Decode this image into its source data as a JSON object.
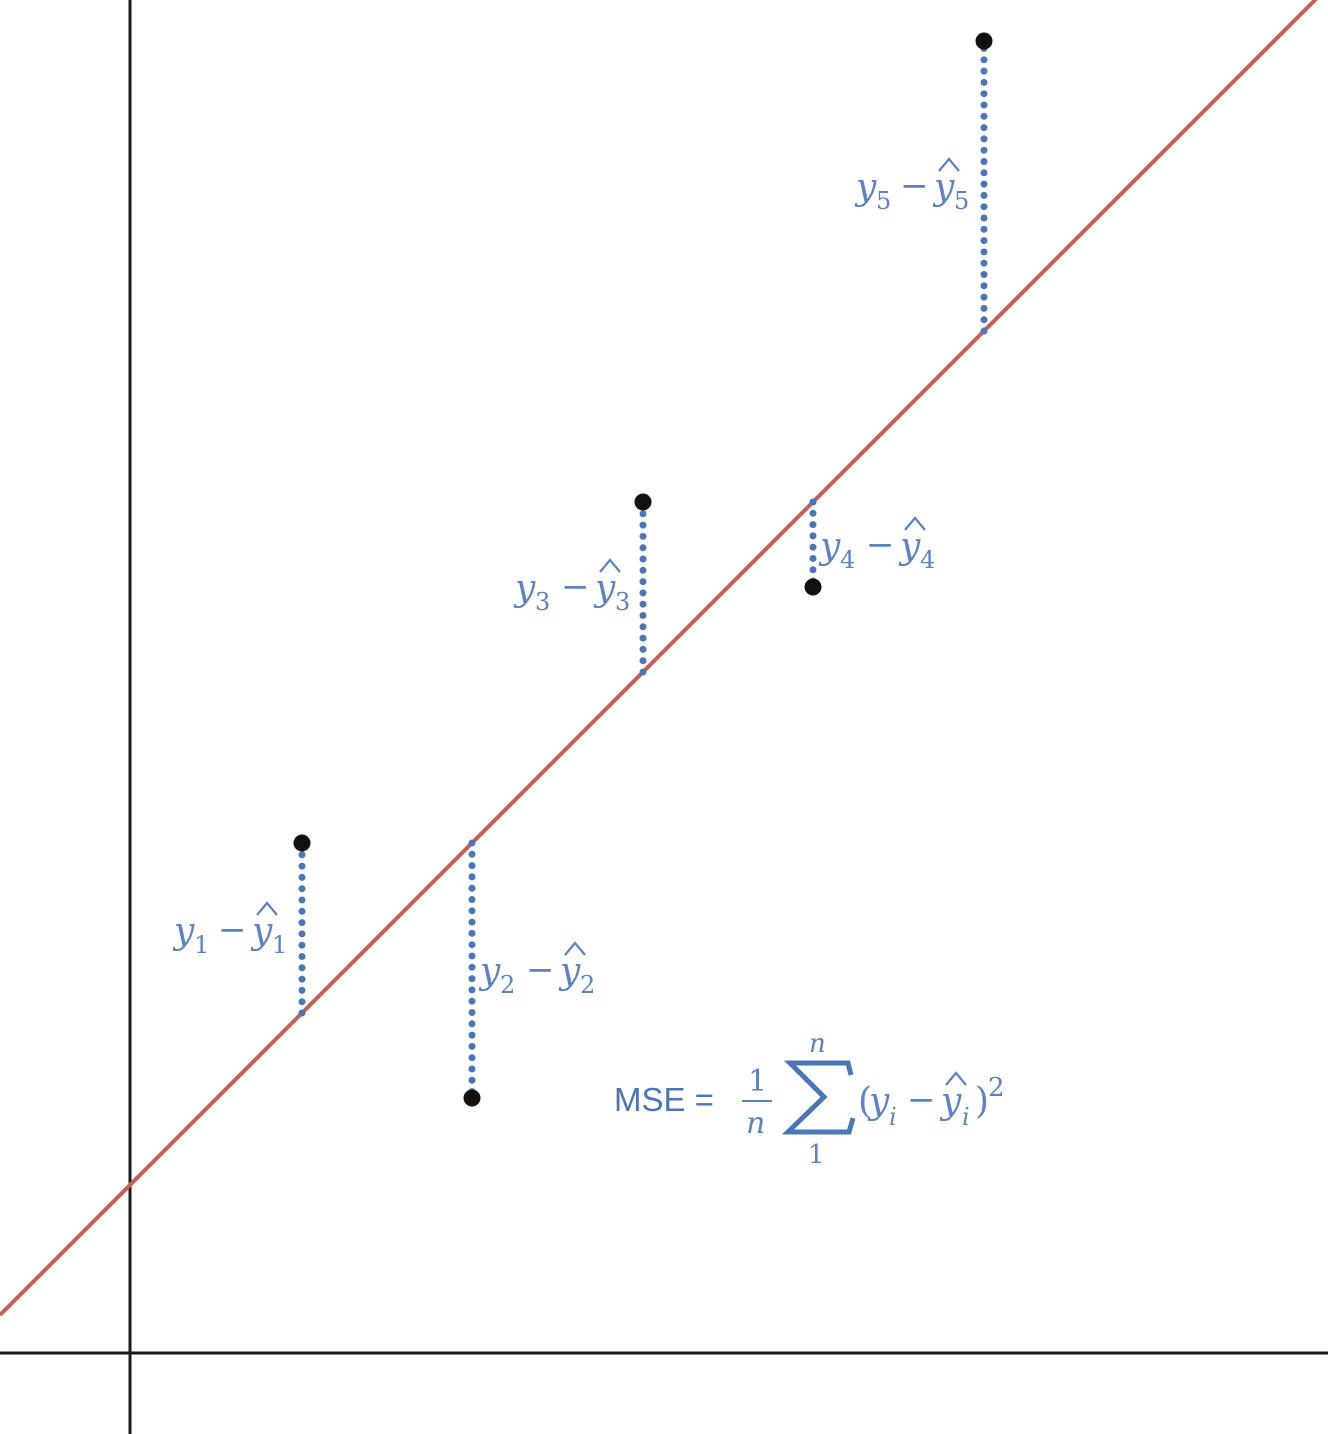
{
  "colors": {
    "axis": "#1a1a1a",
    "fit_line": "#c0605a",
    "residual": "#4a76b8",
    "point": "#111111",
    "math_text": "#5b82c2"
  },
  "points": [
    {
      "id": 1,
      "label": {
        "y": "y",
        "sub": "1",
        "minus": "−",
        "yhat": "y",
        "hat_sub": "1"
      }
    },
    {
      "id": 2,
      "label": {
        "y": "y",
        "sub": "2",
        "minus": "−",
        "yhat": "y",
        "hat_sub": "2"
      }
    },
    {
      "id": 3,
      "label": {
        "y": "y",
        "sub": "3",
        "minus": "−",
        "yhat": "y",
        "hat_sub": "3"
      }
    },
    {
      "id": 4,
      "label": {
        "y": "y",
        "sub": "4",
        "minus": "−",
        "yhat": "y",
        "hat_sub": "4"
      }
    },
    {
      "id": 5,
      "label": {
        "y": "y",
        "sub": "5",
        "minus": "−",
        "yhat": "y",
        "hat_sub": "5"
      }
    }
  ],
  "formula": {
    "lhs": "MSE =",
    "frac_num": "1",
    "frac_den": "n",
    "sum_upper": "n",
    "sum_lower": "1",
    "open_paren": "(",
    "y": "y",
    "y_sub": "i",
    "minus": "−",
    "yhat": "y",
    "yhat_sub": "i",
    "close_paren": ")",
    "power": "2"
  }
}
